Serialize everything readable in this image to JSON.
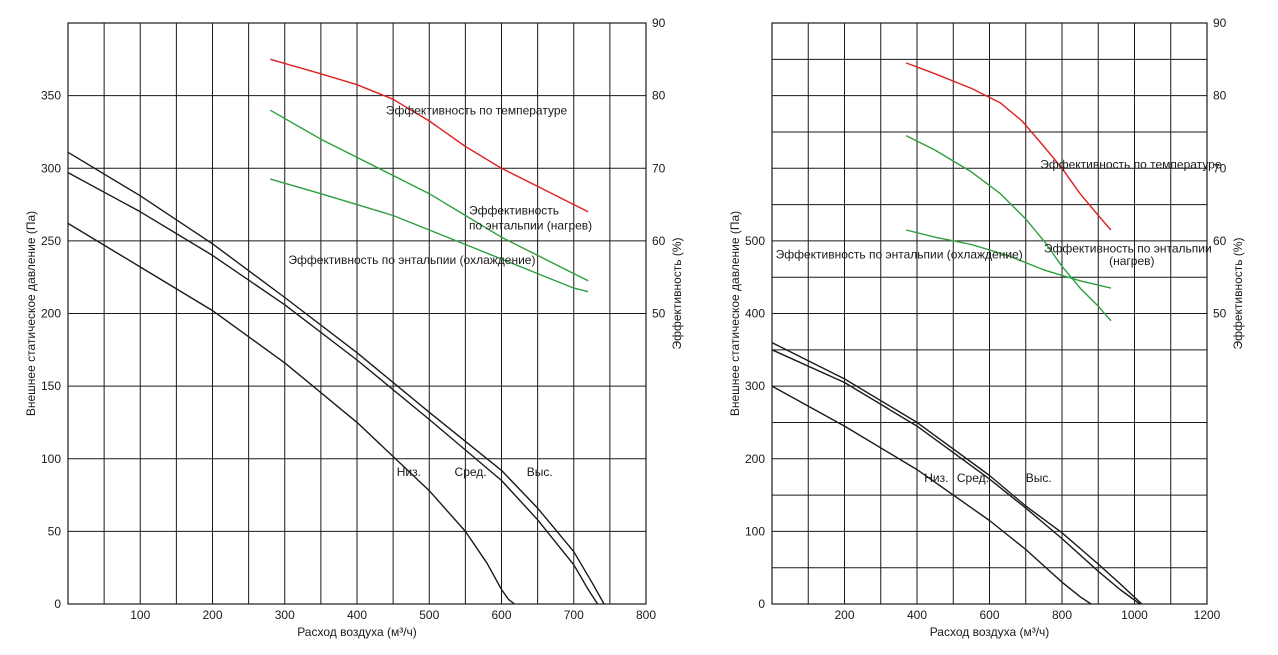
{
  "chart_data": [
    {
      "type": "line",
      "xlabel": "Расход воздуха (м³/ч)",
      "ylabel": "Внешнее статическое давление (Па)",
      "y2label": "Эффективность (%)",
      "xlim": [
        0,
        800
      ],
      "ylim": [
        0,
        400
      ],
      "y2lim": [
        10,
        90
      ],
      "grid": true,
      "x_ticks": [
        "100",
        "200",
        "300",
        "400",
        "500",
        "600",
        "700",
        "800"
      ],
      "y_ticks": [
        "0",
        "50",
        "100",
        "150",
        "200",
        "250",
        "300",
        "350"
      ],
      "y2_ticks": [
        "50",
        "60",
        "70",
        "80",
        "90"
      ],
      "pressure_series": [
        {
          "name": "Низ.",
          "x": [
            0,
            100,
            200,
            300,
            400,
            500,
            550,
            580,
            600,
            610,
            618
          ],
          "y": [
            262,
            232,
            202,
            166,
            125,
            78,
            50,
            28,
            10,
            3,
            0
          ]
        },
        {
          "name": "Сред.",
          "x": [
            0,
            100,
            200,
            300,
            400,
            500,
            600,
            650,
            700,
            720,
            733
          ],
          "y": [
            297,
            270,
            240,
            206,
            168,
            127,
            85,
            58,
            27,
            10,
            0
          ]
        },
        {
          "name": "Выс.",
          "x": [
            0,
            100,
            200,
            300,
            400,
            500,
            600,
            650,
            700,
            725,
            742
          ],
          "y": [
            311,
            281,
            248,
            211,
            173,
            132,
            92,
            66,
            36,
            15,
            0
          ]
        }
      ],
      "efficiency_series": [
        {
          "name": "Эффективность по температуре",
          "color": "#e02020",
          "x": [
            280,
            350,
            400,
            450,
            500,
            550,
            600,
            650,
            700,
            720
          ],
          "y": [
            85,
            83,
            81.5,
            79.5,
            76.5,
            73,
            70,
            67.5,
            65,
            64
          ]
        },
        {
          "name": "Эффективность по энтальпии (нагрев)",
          "color": "#2e9e3e",
          "x": [
            280,
            350,
            400,
            450,
            500,
            550,
            600,
            650,
            700,
            720
          ],
          "y": [
            78,
            74,
            71.5,
            69,
            66.5,
            63.5,
            60.5,
            58,
            55.5,
            54.5
          ]
        },
        {
          "name": "Эффективность по энтальпии (охлаждение)",
          "color": "#2e9e3e",
          "x": [
            280,
            350,
            400,
            450,
            500,
            550,
            600,
            650,
            700,
            720
          ],
          "y": [
            68.5,
            66.5,
            65,
            63.5,
            61.5,
            59.5,
            57.5,
            55.5,
            53.5,
            53
          ]
        }
      ],
      "annotations": [
        {
          "text": "Эффективность по температуре",
          "x": 440,
          "y": 337
        },
        {
          "text": "Эффективность",
          "x": 555,
          "y": 268
        },
        {
          "text": "по энтальпии (нагрев)",
          "x": 555,
          "y": 258
        },
        {
          "text": "Эффективность по энтальпии (охлаждение)",
          "x": 305,
          "y": 234
        },
        {
          "text": "Низ.",
          "x": 455,
          "y": 88
        },
        {
          "text": "Сред.",
          "x": 535,
          "y": 88
        },
        {
          "text": "Выс.",
          "x": 635,
          "y": 88
        }
      ]
    },
    {
      "type": "line",
      "xlabel": "Расход воздуха (м³/ч)",
      "ylabel": "Внешнее статическое давление (Па)",
      "y2label": "Эффективность (%)",
      "xlim": [
        0,
        1200
      ],
      "ylim": [
        0,
        800
      ],
      "y2lim": [
        10,
        90
      ],
      "grid": true,
      "x_ticks": [
        "200",
        "400",
        "600",
        "800",
        "1000",
        "1200"
      ],
      "y_ticks": [
        "0",
        "100",
        "200",
        "300",
        "400",
        "500"
      ],
      "y2_ticks": [
        "50",
        "60",
        "70",
        "80",
        "90"
      ],
      "pressure_series": [
        {
          "name": "Низ.",
          "x": [
            0,
            200,
            400,
            600,
            700,
            800,
            850,
            880
          ],
          "y": [
            300,
            245,
            185,
            115,
            75,
            30,
            10,
            0
          ]
        },
        {
          "name": "Сред.",
          "x": [
            0,
            200,
            400,
            600,
            700,
            800,
            900,
            960,
            1015
          ],
          "y": [
            350,
            305,
            245,
            172,
            132,
            90,
            45,
            20,
            0
          ]
        },
        {
          "name": "Выс.",
          "x": [
            0,
            200,
            400,
            600,
            700,
            800,
            900,
            960,
            1020
          ],
          "y": [
            360,
            310,
            250,
            177,
            135,
            98,
            55,
            28,
            0
          ]
        }
      ],
      "efficiency_series": [
        {
          "name": "Эффективность по температуре",
          "color": "#e02020",
          "x": [
            370,
            450,
            550,
            630,
            690,
            750,
            800,
            850,
            900,
            935
          ],
          "y": [
            84.5,
            83,
            81,
            79,
            76.5,
            73,
            70,
            66.5,
            63.5,
            61.5
          ]
        },
        {
          "name": "Эффективность по энтальпии (нагрев)",
          "color": "#2e9e3e",
          "x": [
            370,
            450,
            550,
            630,
            700,
            750,
            800,
            850,
            900,
            935
          ],
          "y": [
            74.5,
            72.5,
            69.5,
            66.5,
            63,
            60,
            56.5,
            53.5,
            51,
            49
          ]
        },
        {
          "name": "Эффективность по энтальпии (охлаждение)",
          "color": "#2e9e3e",
          "x": [
            370,
            450,
            550,
            650,
            750,
            850,
            935
          ],
          "y": [
            61.5,
            60.5,
            59.5,
            58,
            56,
            54.5,
            53.5
          ]
        }
      ],
      "annotations": [
        {
          "text": "Эффективность по температуре",
          "x": 740,
          "y": 600
        },
        {
          "text": "Эффективность по энтальпии",
          "x": 750,
          "y": 484
        },
        {
          "text": "(нагрев)",
          "x": 930,
          "y": 467
        },
        {
          "text": "Эффективность по энтальпии (охлаждение)",
          "x": 10,
          "y": 476
        },
        {
          "text": "Низ.",
          "x": 420,
          "y": 168
        },
        {
          "text": "Сред.",
          "x": 510,
          "y": 168
        },
        {
          "text": "Выс.",
          "x": 700,
          "y": 168
        }
      ]
    }
  ]
}
